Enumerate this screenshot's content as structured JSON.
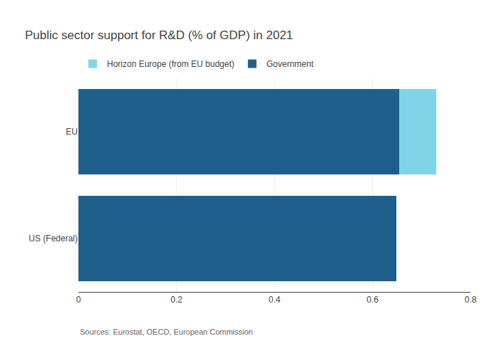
{
  "chart_data": {
    "type": "bar",
    "orientation": "horizontal",
    "stacked": true,
    "title": "Public sector support for R&D (% of GDP) in 2021",
    "categories": [
      "US (Federal)",
      "EU"
    ],
    "series": [
      {
        "name": "Government",
        "color": "#1f5f8b",
        "values": [
          0.648,
          0.655
        ]
      },
      {
        "name": "Horizon Europe (from EU budget)",
        "color": "#7fd4e8",
        "values": [
          0.0,
          0.075
        ]
      }
    ],
    "xlim": [
      0,
      0.8
    ],
    "xticks": [
      0,
      0.2,
      0.4,
      0.6,
      0.8
    ],
    "grid": true,
    "legend": "upper left",
    "annotations": [
      "Sources: Eurostat, OECD, European Commission"
    ]
  }
}
